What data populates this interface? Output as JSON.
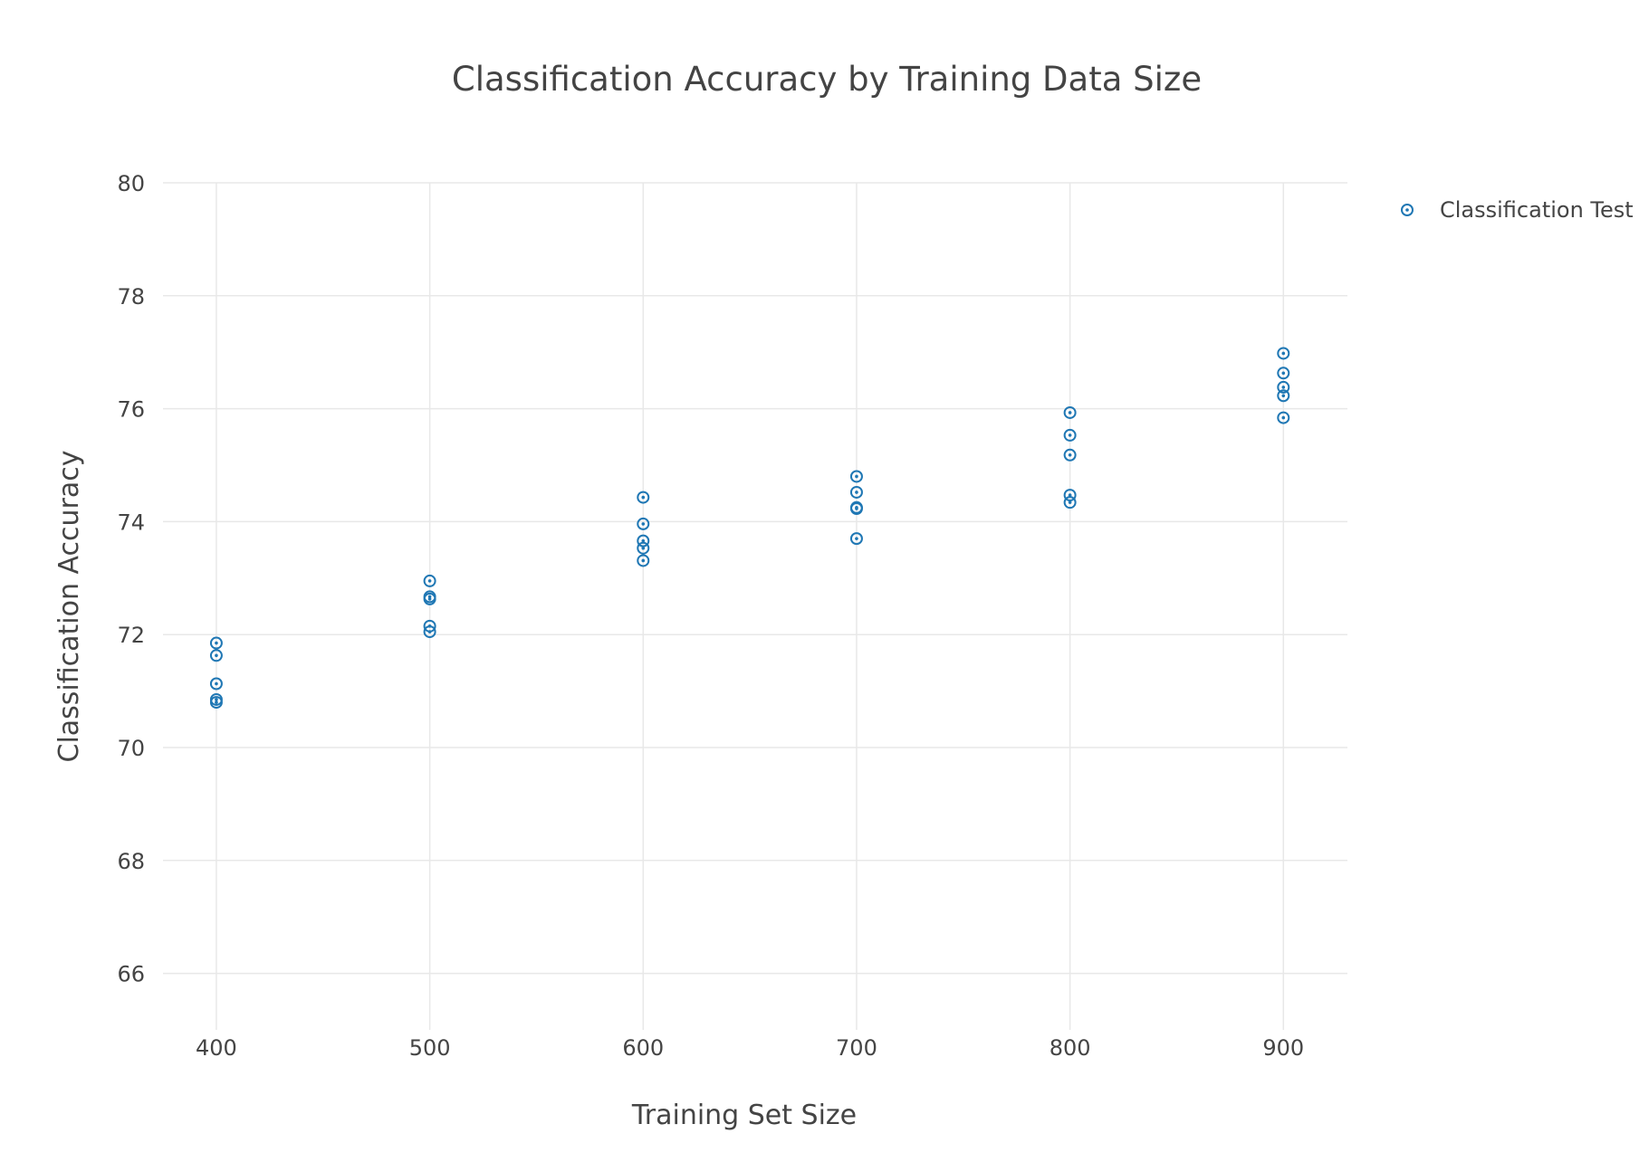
{
  "chart_data": {
    "type": "scatter",
    "title": "Classification Accuracy by Training Data Size",
    "xlabel": "Training Set Size",
    "ylabel": "Classification Accuracy",
    "xlim": [
      375,
      930
    ],
    "ylim": [
      65,
      80
    ],
    "x_ticks": [
      400,
      500,
      600,
      700,
      800,
      900
    ],
    "y_ticks": [
      66,
      68,
      70,
      72,
      74,
      76,
      78,
      80
    ],
    "grid": true,
    "legend_position": "top-right",
    "marker": "circle-dot-open",
    "series": [
      {
        "name": "Classification Test",
        "color": "#1f77b4",
        "points": [
          {
            "x": 400,
            "y": 71.85
          },
          {
            "x": 400,
            "y": 71.63
          },
          {
            "x": 400,
            "y": 71.13
          },
          {
            "x": 400,
            "y": 70.85
          },
          {
            "x": 400,
            "y": 70.8
          },
          {
            "x": 500,
            "y": 72.95
          },
          {
            "x": 500,
            "y": 72.67
          },
          {
            "x": 500,
            "y": 72.63
          },
          {
            "x": 500,
            "y": 72.15
          },
          {
            "x": 500,
            "y": 72.05
          },
          {
            "x": 600,
            "y": 74.43
          },
          {
            "x": 600,
            "y": 73.96
          },
          {
            "x": 600,
            "y": 73.66
          },
          {
            "x": 600,
            "y": 73.53
          },
          {
            "x": 600,
            "y": 73.31
          },
          {
            "x": 700,
            "y": 74.8
          },
          {
            "x": 700,
            "y": 74.52
          },
          {
            "x": 700,
            "y": 74.25
          },
          {
            "x": 700,
            "y": 74.23
          },
          {
            "x": 700,
            "y": 73.7
          },
          {
            "x": 800,
            "y": 75.93
          },
          {
            "x": 800,
            "y": 75.53
          },
          {
            "x": 800,
            "y": 75.18
          },
          {
            "x": 800,
            "y": 74.47
          },
          {
            "x": 800,
            "y": 74.34
          },
          {
            "x": 900,
            "y": 76.98
          },
          {
            "x": 900,
            "y": 76.63
          },
          {
            "x": 900,
            "y": 76.38
          },
          {
            "x": 900,
            "y": 76.23
          },
          {
            "x": 900,
            "y": 75.84
          }
        ]
      }
    ]
  }
}
